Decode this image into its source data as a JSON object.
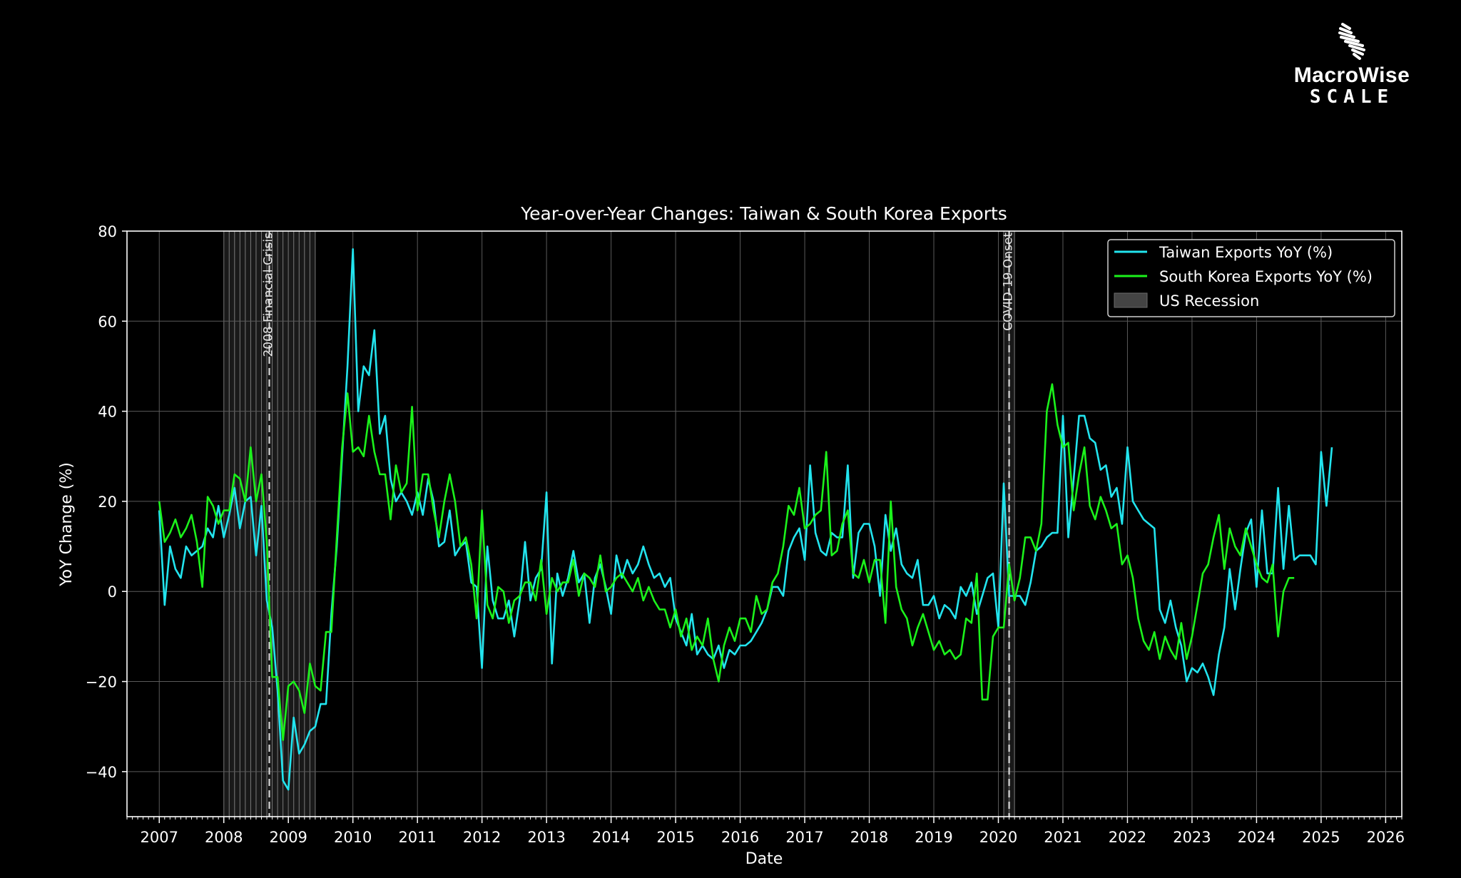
{
  "brand": {
    "name": "MacroWise",
    "sub": "SCALE"
  },
  "colors": {
    "background": "#000000",
    "taiwan": "#22e4ee",
    "korea": "#1bf21b",
    "recession": "#7a7a7a",
    "grid": "#5a5a5a"
  },
  "chart_data": {
    "type": "line",
    "title": "Year-over-Year Changes: Taiwan & South Korea Exports",
    "xlabel": "Date",
    "ylabel": "YoY Change (%)",
    "xlim": [
      "2006-07-01",
      "2026-04-01"
    ],
    "ylim": [
      -50,
      80
    ],
    "yticks": [
      -40,
      -20,
      0,
      20,
      40,
      60,
      80
    ],
    "xticks": [
      "2007",
      "2008",
      "2009",
      "2010",
      "2011",
      "2012",
      "2013",
      "2014",
      "2015",
      "2016",
      "2017",
      "2018",
      "2019",
      "2020",
      "2021",
      "2022",
      "2023",
      "2024",
      "2025",
      "2026"
    ],
    "grid": true,
    "legend": {
      "placement": "top-right",
      "entries": [
        "Taiwan Exports YoY (%)",
        "South Korea Exports YoY (%)",
        "US Recession"
      ]
    },
    "recessions": [
      {
        "start": "2008-01-01",
        "end": "2009-06-01"
      },
      {
        "start": "2020-02-01",
        "end": "2020-04-01"
      }
    ],
    "events": [
      {
        "date": "2008-09-15",
        "label": "2008 Financial Crisis"
      },
      {
        "date": "2020-03-01",
        "label": "COVID-19 Onset"
      }
    ],
    "series": [
      {
        "name": "Taiwan Exports YoY (%)",
        "start": "2007-01",
        "values": [
          18,
          -3,
          10,
          5,
          3,
          10,
          8,
          9,
          10,
          14,
          12,
          19,
          12,
          17,
          23,
          14,
          20,
          21,
          8,
          19,
          -2,
          -8,
          -22,
          -42,
          -44,
          -28,
          -36,
          -34,
          -31,
          -30,
          -25,
          -25,
          -5,
          10,
          30,
          50,
          76,
          40,
          50,
          48,
          58,
          35,
          39,
          25,
          20,
          22,
          20,
          17,
          22,
          17,
          25,
          20,
          10,
          11,
          18,
          8,
          10,
          11,
          2,
          1,
          -17,
          10,
          -2,
          -6,
          -6,
          -2,
          -10,
          -2,
          11,
          -2,
          3,
          5,
          22,
          -16,
          4,
          -1,
          3,
          9,
          2,
          4,
          -7,
          3,
          6,
          1,
          -5,
          8,
          3,
          7,
          4,
          6,
          10,
          6,
          3,
          4,
          1,
          3,
          -6,
          -9,
          -12,
          -5,
          -14,
          -12,
          -14,
          -15,
          -12,
          -17,
          -13,
          -14,
          -12,
          -12,
          -11,
          -9,
          -7,
          -4,
          1,
          1,
          -1,
          9,
          12,
          14,
          7,
          28,
          13,
          9,
          8,
          13,
          12,
          12,
          28,
          3,
          13,
          15,
          15,
          10,
          -1,
          17,
          9,
          14,
          6,
          4,
          3,
          7,
          -3,
          -3,
          -1,
          -6,
          -3,
          -4,
          -6,
          1,
          -1,
          2,
          -5,
          -1,
          3,
          4,
          -8,
          24,
          -1,
          -1,
          -1,
          -3,
          2,
          9,
          10,
          12,
          13,
          13,
          39,
          12,
          25,
          39,
          39,
          34,
          33,
          27,
          28,
          21,
          23,
          15,
          32,
          20,
          18,
          16,
          15,
          14,
          -4,
          -7,
          -2,
          -8,
          -12,
          -20,
          -17,
          -18,
          -16,
          -19,
          -23,
          -14,
          -8,
          5,
          -4,
          5,
          13,
          16,
          1,
          18,
          4,
          4,
          23,
          5,
          19,
          7,
          8,
          8,
          8,
          6,
          31,
          19,
          32
        ],
        "color": "#22e4ee"
      },
      {
        "name": "South Korea Exports YoY (%)",
        "start": "2007-01",
        "values": [
          20,
          11,
          13,
          16,
          12,
          14,
          17,
          11,
          1,
          21,
          19,
          15,
          18,
          18,
          26,
          25,
          20,
          32,
          20,
          26,
          11,
          -19,
          -19,
          -33,
          -21,
          -20,
          -22,
          -27,
          -16,
          -21,
          -22,
          -9,
          -9,
          12,
          32,
          44,
          31,
          32,
          30,
          39,
          31,
          26,
          26,
          16,
          28,
          22,
          24,
          41,
          18,
          26,
          26,
          18,
          12,
          20,
          26,
          20,
          10,
          12,
          6,
          -6,
          18,
          -3,
          -6,
          1,
          0,
          -7,
          -2,
          -1,
          2,
          2,
          -2,
          7,
          -5,
          3,
          0,
          2,
          2,
          7,
          -1,
          4,
          3,
          1,
          8,
          0,
          1,
          3,
          4,
          2,
          0,
          3,
          -2,
          1,
          -2,
          -4,
          -4,
          -8,
          -4,
          -10,
          -6,
          -13,
          -10,
          -12,
          -6,
          -15,
          -20,
          -12,
          -8,
          -11,
          -6,
          -6,
          -9,
          -1,
          -5,
          -4,
          2,
          4,
          10,
          19,
          17,
          23,
          14,
          15,
          17,
          18,
          31,
          8,
          9,
          15,
          18,
          4,
          3,
          7,
          2,
          7,
          7,
          -7,
          20,
          1,
          -4,
          -6,
          -12,
          -8,
          -5,
          -9,
          -13,
          -11,
          -14,
          -13,
          -15,
          -14,
          -6,
          -7,
          4,
          -24,
          -24,
          -10,
          -8,
          -8,
          6,
          -2,
          3,
          12,
          12,
          9,
          15,
          40,
          46,
          37,
          32,
          33,
          18,
          26,
          32,
          19,
          16,
          21,
          18,
          14,
          15,
          6,
          8,
          3,
          -6,
          -11,
          -13,
          -9,
          -15,
          -10,
          -13,
          -15,
          -7,
          -15,
          -10,
          -3,
          4,
          6,
          12,
          17,
          5,
          14,
          10,
          8,
          14,
          10,
          6,
          3,
          2,
          6,
          -10,
          0,
          3,
          3
        ],
        "color": "#1bf21b"
      }
    ]
  }
}
